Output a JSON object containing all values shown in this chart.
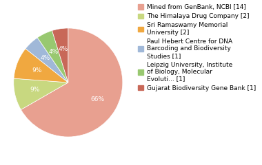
{
  "labels": [
    "Mined from GenBank, NCBI [14]",
    "The Himalaya Drug Company [2]",
    "Sri Ramaswamy Memorial\nUniversity [2]",
    "Paul Hebert Centre for DNA\nBarcoding and Biodiversity\nStudies [1]",
    "Leipzig University, Institute\nof Biology, Molecular\nEvoluti... [1]",
    "Gujarat Biodiversity Gene Bank [1]"
  ],
  "values": [
    14,
    2,
    2,
    1,
    1,
    1
  ],
  "colors": [
    "#e8a090",
    "#c8d880",
    "#f0a840",
    "#a0b8d8",
    "#98c870",
    "#c86858"
  ],
  "pct_labels": [
    "66%",
    "9%",
    "9%",
    "4%",
    "4%",
    "4%"
  ],
  "background_color": "#ffffff",
  "label_color": "white",
  "label_fontsize": 6.5,
  "legend_fontsize": 6.5
}
